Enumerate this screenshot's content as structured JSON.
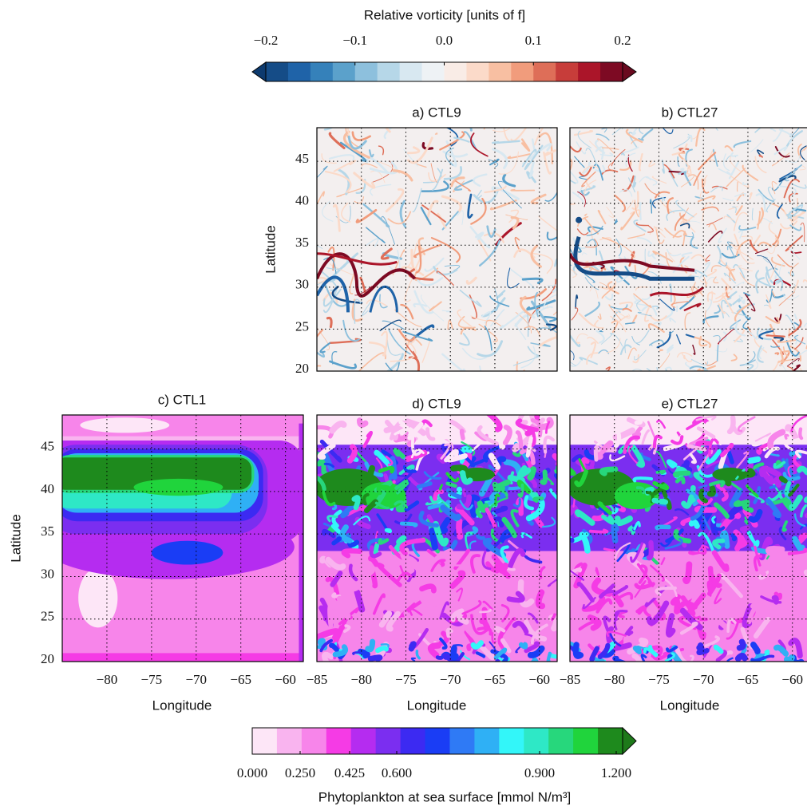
{
  "colorbars": [
    {
      "label": "Relative vorticity [units of f]",
      "lim": [
        -0.2,
        0.2
      ],
      "ticks": [
        {
          "value": -0.2,
          "label": "−0.2"
        },
        {
          "value": -0.1,
          "label": "−0.1"
        },
        {
          "value": 0,
          "label": "0.0"
        },
        0.1,
        0.2
      ],
      "colors": [
        "#154c87",
        "#1f63a8",
        "#3581ba",
        "#5ba1cb",
        "#8dc0dd",
        "#b6d7e8",
        "#d8e8f1",
        "#eef2f5",
        "#f9ece6",
        "#fbdac9",
        "#f8bfa2",
        "#f19c7c",
        "#de6e58",
        "#c73d3a",
        "#ab1529",
        "#7d0a23"
      ],
      "under_color": "#0d3a6e",
      "over_color": "#6a0a1f"
    },
    {
      "label": "Phytoplankton at sea surface [mmol N/m³]",
      "lim": [
        0,
        1.2
      ],
      "ticks": [
        {
          "value": 0,
          "label": "0.000"
        },
        {
          "value": 0.25,
          "label": "0.250"
        },
        {
          "value": 0.425,
          "label": "0.425"
        },
        {
          "value": 0.6,
          "label": "0.600"
        },
        {
          "value": 0.9,
          "label": "0.900"
        },
        {
          "value": 1.2,
          "label": "1.200"
        }
      ],
      "colors": [
        "#fde6f7",
        "#f9b4ef",
        "#f785ea",
        "#f53be5",
        "#b52cf0",
        "#7b2ef0",
        "#3c2af2",
        "#1a3df5",
        "#2f7af5",
        "#2fb0f5",
        "#33f6f9",
        "#2ee8c6",
        "#27d77c",
        "#20d43c",
        "#1e8a1d"
      ],
      "over_color": "#1e7a1a"
    }
  ],
  "chart_data": [
    {
      "type": "map",
      "title": "a) CTL9",
      "ylabel": "Latitude",
      "xlim": [
        -85,
        -58
      ],
      "ylim": [
        20,
        49
      ],
      "xticks": [
        -80,
        -75,
        -70,
        -65,
        -60
      ],
      "show_xticklabels": false,
      "yticks": [
        20,
        25,
        30,
        35,
        40,
        45
      ],
      "show_yticklabels": true,
      "grid": true
    },
    {
      "type": "map",
      "title": "b) CTL27",
      "xlim": [
        -85,
        -58
      ],
      "ylim": [
        20,
        49
      ],
      "xticks": [
        -80,
        -75,
        -70,
        -65,
        -60
      ],
      "show_xticklabels": false,
      "yticks": [
        20,
        25,
        30,
        35,
        40,
        45
      ],
      "show_yticklabels": false,
      "grid": true
    },
    {
      "type": "map",
      "title": "c) CTL1",
      "xlabel": "Longitude",
      "ylabel": "Latitude",
      "xlim": [
        -85,
        -58
      ],
      "ylim": [
        20,
        49
      ],
      "xticks": [
        {
          "value": -80,
          "label": "−80"
        },
        {
          "value": -75,
          "label": "−75"
        },
        {
          "value": -70,
          "label": "−70"
        },
        {
          "value": -65,
          "label": "−65"
        },
        {
          "value": -60,
          "label": "−60"
        }
      ],
      "show_xticklabels": true,
      "yticks": [
        20,
        25,
        30,
        35,
        40,
        45
      ],
      "show_yticklabels": true,
      "grid": true
    },
    {
      "type": "map",
      "title": "d) CTL9",
      "xlabel": "Longitude",
      "xlim": [
        -85,
        -58
      ],
      "ylim": [
        20,
        49
      ],
      "xticks": [
        {
          "value": -85,
          "label": "−85"
        },
        {
          "value": -80,
          "label": "−80"
        },
        {
          "value": -75,
          "label": "−75"
        },
        {
          "value": -70,
          "label": "−70"
        },
        {
          "value": -65,
          "label": "−65"
        },
        {
          "value": -60,
          "label": "−60"
        }
      ],
      "show_xticklabels": true,
      "yticks": [
        20,
        25,
        30,
        35,
        40,
        45
      ],
      "show_yticklabels": false,
      "grid": true
    },
    {
      "type": "map",
      "title": "e) CTL27",
      "xlabel": "Longitude",
      "xlim": [
        -85,
        -58
      ],
      "ylim": [
        20,
        49
      ],
      "xticks": [
        {
          "value": -85,
          "label": "−85"
        },
        {
          "value": -80,
          "label": "−80"
        },
        {
          "value": -75,
          "label": "−75"
        },
        {
          "value": -70,
          "label": "−70"
        },
        {
          "value": -65,
          "label": "−65"
        },
        {
          "value": -60,
          "label": "−60"
        }
      ],
      "show_xticklabels": true,
      "yticks": [
        20,
        25,
        30,
        35,
        40,
        45
      ],
      "show_yticklabels": false,
      "grid": true
    }
  ]
}
